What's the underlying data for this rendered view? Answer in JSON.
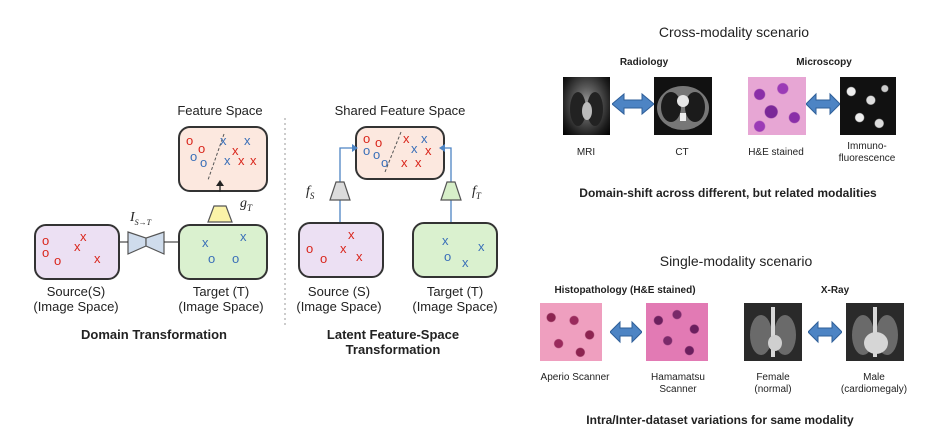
{
  "left": {
    "feature_space": "Feature Space",
    "g_label": "g",
    "g_sub": "T",
    "i_label": "I",
    "i_sub": "S→T",
    "source_label": "Source(S)",
    "source_sub": "(Image Space)",
    "target_label": "Target (T)",
    "target_sub": "(Image Space)",
    "caption": "Domain Transformation"
  },
  "middle": {
    "shared_feature_space": "Shared Feature Space",
    "fs_label": "f",
    "fs_sub": "S",
    "ft_label": "f",
    "ft_sub": "T",
    "source_label": "Source (S)",
    "source_sub": "(Image Space)",
    "target_label": "Target (T)",
    "target_sub": "(Image Space)",
    "caption_line1": "Latent Feature-Space",
    "caption_line2": "Transformation"
  },
  "symbols": {
    "o": "o",
    "x": "x"
  },
  "cross": {
    "title": "Cross-modality scenario",
    "radiology": "Radiology",
    "microscopy": "Microscopy",
    "mri": "MRI",
    "ct": "CT",
    "he": "H&E stained",
    "immuno1": "Immuno-",
    "immuno2": "fluorescence",
    "caption": "Domain-shift across different, but related modalities"
  },
  "single": {
    "title": "Single-modality scenario",
    "histo": "Histopathology (H&E stained)",
    "xray": "X-Ray",
    "aperio": "Aperio Scanner",
    "hamamatsu1": "Hamamatsu",
    "hamamatsu2": "Scanner",
    "female1": "Female",
    "female2": "(normal)",
    "male1": "Male",
    "male2": "(cardiomegaly)",
    "caption": "Intra/Inter-dataset variations for same modality"
  },
  "colors": {
    "red_symbol": "#d9261c",
    "blue_symbol": "#3a6fb8",
    "source_box": "#ece0f3",
    "feature_box": "#fce8df",
    "target_box": "#daf1cf",
    "arrow_blue": "#4d84c4"
  }
}
